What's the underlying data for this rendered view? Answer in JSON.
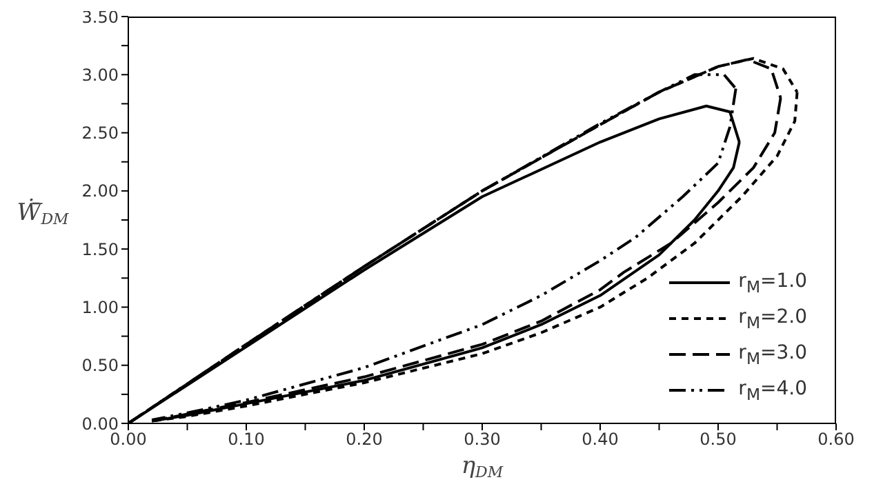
{
  "chart_data": {
    "type": "line",
    "xlabel": "η$_{DM}$",
    "ylabel": "Ẇ̄$_{DM}$",
    "xlim": [
      0,
      0.6
    ],
    "xticks": [
      {
        "value": 0,
        "label": "0.00"
      },
      {
        "value": 0.05,
        "label": null
      },
      {
        "value": 0.1,
        "label": "0.10"
      },
      {
        "value": 0.15,
        "label": null
      },
      {
        "value": 0.2,
        "label": "0.20"
      },
      {
        "value": 0.25,
        "label": null
      },
      {
        "value": 0.3,
        "label": "0.30"
      },
      {
        "value": 0.35,
        "label": null
      },
      {
        "value": 0.4,
        "label": "0.40"
      },
      {
        "value": 0.45,
        "label": null
      },
      {
        "value": 0.5,
        "label": "0.50"
      },
      {
        "value": 0.55,
        "label": null
      },
      {
        "value": 0.6,
        "label": "0.60"
      }
    ],
    "ylim": [
      0,
      3.5
    ],
    "yticks": [
      {
        "value": 0,
        "label": "0.00"
      },
      {
        "value": 0.25,
        "label": null
      },
      {
        "value": 0.5,
        "label": "0.50"
      },
      {
        "value": 0.75,
        "label": null
      },
      {
        "value": 1,
        "label": "1.00"
      },
      {
        "value": 1.25,
        "label": null
      },
      {
        "value": 1.5,
        "label": "1.50"
      },
      {
        "value": 1.75,
        "label": null
      },
      {
        "value": 2,
        "label": "2.00"
      },
      {
        "value": 2.25,
        "label": null
      },
      {
        "value": 2.5,
        "label": "2.50"
      },
      {
        "value": 2.75,
        "label": null
      },
      {
        "value": 3,
        "label": "3.00"
      },
      {
        "value": 3.25,
        "label": null
      },
      {
        "value": 3.5,
        "label": "3.50"
      }
    ],
    "grid": false,
    "legend": "bottom right",
    "marker": "none",
    "series": [
      {
        "name": "r$_{M}$=1.0",
        "color": "#000000",
        "line_style": "solid",
        "x": [
          0,
          0.1,
          0.2,
          0.3,
          0.4,
          0.45,
          0.49,
          0.51,
          0.518
        ],
        "values": [
          0,
          0.66,
          1.32,
          1.95,
          2.42,
          2.62,
          2.73,
          2.68,
          2.42
        ]
      },
      {
        "color": "#000000",
        "line_style": "solid",
        "x": [
          0.518,
          0.513,
          0.5,
          0.48,
          0.45,
          0.4,
          0.35,
          0.3,
          0.2,
          0.1,
          0.05,
          0.02
        ],
        "values": [
          2.42,
          2.2,
          2.0,
          1.75,
          1.45,
          1.1,
          0.85,
          0.65,
          0.37,
          0.17,
          0.07,
          0.02
        ]
      },
      {
        "name": "r$_{M}$=2.0",
        "color": "#000000",
        "line_style": "dashed",
        "x": [
          0,
          0.1,
          0.2,
          0.3,
          0.4,
          0.45,
          0.5,
          0.53,
          0.555,
          0.567
        ],
        "values": [
          0,
          0.68,
          1.35,
          2.0,
          2.57,
          2.85,
          3.07,
          3.14,
          3.05,
          2.85
        ]
      },
      {
        "color": "#000000",
        "line_style": "dashed",
        "x": [
          0.567,
          0.565,
          0.55,
          0.52,
          0.48,
          0.44,
          0.4,
          0.35,
          0.3,
          0.2,
          0.1,
          0.05,
          0.02
        ],
        "values": [
          2.85,
          2.6,
          2.3,
          1.95,
          1.55,
          1.25,
          1.0,
          0.78,
          0.6,
          0.35,
          0.15,
          0.06,
          0.02
        ]
      },
      {
        "name": "r$_{M}$=3.0",
        "color": "#000000",
        "line_style": "long-dashed",
        "x": [
          0,
          0.1,
          0.2,
          0.3,
          0.4,
          0.45,
          0.5,
          0.525,
          0.545,
          0.553
        ],
        "values": [
          0,
          0.68,
          1.35,
          2.0,
          2.57,
          2.85,
          3.07,
          3.13,
          3.05,
          2.8
        ]
      },
      {
        "color": "#000000",
        "line_style": "long-dashed",
        "x": [
          0.553,
          0.548,
          0.53,
          0.5,
          0.46,
          0.42,
          0.4,
          0.35,
          0.3,
          0.2,
          0.1,
          0.05,
          0.02
        ],
        "values": [
          2.8,
          2.5,
          2.2,
          1.9,
          1.55,
          1.3,
          1.15,
          0.88,
          0.68,
          0.4,
          0.18,
          0.08,
          0.02
        ]
      },
      {
        "name": "r$_{M}$=4.0",
        "color": "#000000",
        "line_style": "dash-dot-dot",
        "x": [
          0,
          0.1,
          0.2,
          0.3,
          0.4,
          0.45,
          0.48,
          0.505,
          0.515
        ],
        "values": [
          0,
          0.68,
          1.35,
          2.0,
          2.58,
          2.85,
          3.0,
          3.0,
          2.88
        ]
      },
      {
        "color": "#000000",
        "line_style": "dash-dot-dot",
        "x": [
          0.515,
          0.51,
          0.5,
          0.47,
          0.43,
          0.4,
          0.35,
          0.3,
          0.2,
          0.1,
          0.05,
          0.02
        ],
        "values": [
          2.88,
          2.55,
          2.24,
          1.95,
          1.6,
          1.4,
          1.1,
          0.85,
          0.48,
          0.2,
          0.09,
          0.03
        ]
      }
    ]
  }
}
